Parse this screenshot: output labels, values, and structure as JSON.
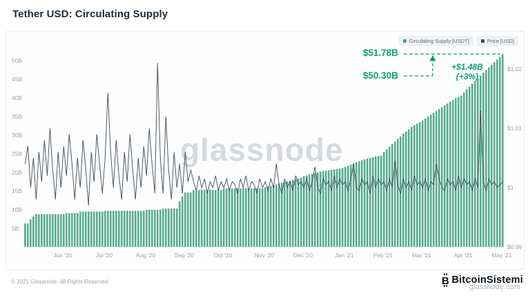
{
  "header": {
    "title": "Tether USD: Circulating Supply"
  },
  "legend": [
    {
      "label": "Circulating Supply [USDT]",
      "color": "#46a283"
    },
    {
      "label": "Price [USD]",
      "color": "#37474f"
    }
  ],
  "watermark": "glassnode",
  "annotations": {
    "current_label": "$51.78B",
    "previous_label": "$50.30B",
    "delta_line1": "+$1.48B",
    "delta_line2": "(+3%)",
    "current_value": 51.78,
    "previous_value": 50.3,
    "color": "#0ba173"
  },
  "footer": {
    "copyright": "© 2021 Glassnode. All Rights Reserved.",
    "brand": "BitcoinSistemi",
    "brand_overlay": "glassnode.com",
    "bitcoin_icon": "B"
  },
  "chart_data": {
    "type": "bar",
    "title": "Tether USD: Circulating Supply",
    "x_unit": "date (May 2020 - May 2021, ~2-day bars)",
    "grid": false,
    "legend_position": "top-right",
    "x_ticks": [
      {
        "i": 14,
        "label": "Jun '20"
      },
      {
        "i": 29,
        "label": "Jul '20"
      },
      {
        "i": 44,
        "label": "Aug '20"
      },
      {
        "i": 58,
        "label": "Sep '20"
      },
      {
        "i": 72,
        "label": "Oct '20"
      },
      {
        "i": 87,
        "label": "Nov '20"
      },
      {
        "i": 101,
        "label": "Dec '20"
      },
      {
        "i": 116,
        "label": "Jan '21"
      },
      {
        "i": 130,
        "label": "Feb '21"
      },
      {
        "i": 144,
        "label": "Mar '21"
      },
      {
        "i": 159,
        "label": "Apr '21"
      },
      {
        "i": 173,
        "label": "May '21"
      }
    ],
    "left_axis": {
      "label": "Circulating Supply [USDT]",
      "range": [
        0,
        52
      ],
      "ticks": [
        {
          "v": 5,
          "label": "5B"
        },
        {
          "v": 10,
          "label": "10B"
        },
        {
          "v": 15,
          "label": "15B"
        },
        {
          "v": 20,
          "label": "20B"
        },
        {
          "v": 25,
          "label": "25B"
        },
        {
          "v": 30,
          "label": "30B"
        },
        {
          "v": 35,
          "label": "35B"
        },
        {
          "v": 40,
          "label": "40B"
        },
        {
          "v": 45,
          "label": "45B"
        },
        {
          "v": 50,
          "label": "50B"
        }
      ]
    },
    "right_axis": {
      "label": "Price [USD]",
      "range": [
        0.99,
        1.02
      ],
      "ticks": [
        {
          "v": 0.99,
          "label": "$0.99"
        },
        {
          "v": 1.0,
          "label": "$1"
        },
        {
          "v": 1.01,
          "label": "$1.01"
        },
        {
          "v": 1.02,
          "label": "$1.02"
        }
      ]
    },
    "series": [
      {
        "name": "Circulating Supply [USDT]",
        "type": "bar",
        "unit": "billions USDT",
        "color": "#46a283",
        "values": [
          6.3,
          6.3,
          7.4,
          8.2,
          8.8,
          8.8,
          8.8,
          8.8,
          8.8,
          8.8,
          8.8,
          8.8,
          8.8,
          8.8,
          8.8,
          9.1,
          9.1,
          9.1,
          9.1,
          9.1,
          9.5,
          9.5,
          9.5,
          9.5,
          9.5,
          9.5,
          9.5,
          9.5,
          9.5,
          9.7,
          9.7,
          9.7,
          9.7,
          9.7,
          9.7,
          9.7,
          9.7,
          9.7,
          9.7,
          9.7,
          9.7,
          9.7,
          9.7,
          9.7,
          10.0,
          10.0,
          10.0,
          10.0,
          10.0,
          10.0,
          10.3,
          10.3,
          10.3,
          10.3,
          10.3,
          10.3,
          12.2,
          13.6,
          14.6,
          14.6,
          14.6,
          15.3,
          15.2,
          15.3,
          15.4,
          15.3,
          15.3,
          15.4,
          15.3,
          15.3,
          15.4,
          15.3,
          15.7,
          15.7,
          15.7,
          15.7,
          15.7,
          15.7,
          15.7,
          15.7,
          15.7,
          15.7,
          15.7,
          15.7,
          15.7,
          15.7,
          15.7,
          16.0,
          16.2,
          16.4,
          16.6,
          16.8,
          17.0,
          17.2,
          17.4,
          17.6,
          17.8,
          18.0,
          18.2,
          18.4,
          18.6,
          19.0,
          19.2,
          19.4,
          19.6,
          19.8,
          20.0,
          20.2,
          20.4,
          20.5,
          20.6,
          20.7,
          20.8,
          20.9,
          21.0,
          21.2,
          21.5,
          21.8,
          22.1,
          22.4,
          22.7,
          23.0,
          23.3,
          23.5,
          23.7,
          23.9,
          24.1,
          24.3,
          24.4,
          24.5,
          25.5,
          26.2,
          26.9,
          27.6,
          28.3,
          29.0,
          29.7,
          30.4,
          31.0,
          31.6,
          32.2,
          32.7,
          33.1,
          33.5,
          34.0,
          34.5,
          35.0,
          35.5,
          36.0,
          36.5,
          37.0,
          37.5,
          38.0,
          38.5,
          39.0,
          39.5,
          40.0,
          40.3,
          40.6,
          41.5,
          42.3,
          43.0,
          43.8,
          44.5,
          45.2,
          46.0,
          46.8,
          47.5,
          48.2,
          48.9,
          49.6,
          50.3,
          51.0,
          51.78
        ]
      },
      {
        "name": "Price [USD]",
        "type": "line",
        "unit": "USD",
        "color": "#3c4b54",
        "values": [
          1.004,
          1.007,
          1.0,
          1.005,
          0.998,
          1.006,
          1.001,
          1.008,
          1.002,
          1.01,
          1.003,
          0.998,
          1.006,
          1.0,
          1.007,
          1.002,
          1.009,
          1.004,
          0.998,
          1.005,
          1.0,
          1.008,
          1.003,
          0.997,
          1.006,
          1.001,
          1.009,
          1.004,
          0.999,
          1.005,
          1.016,
          1.006,
          1.0,
          1.008,
          1.002,
          0.998,
          1.006,
          1.001,
          1.009,
          1.003,
          0.998,
          1.005,
          1.0,
          1.007,
          1.002,
          1.01,
          1.004,
          0.999,
          1.021,
          1.005,
          0.999,
          1.012,
          1.003,
          0.998,
          1.006,
          1.0,
          1.004,
          0.999,
          1.006,
          1.001,
          1.003,
          1.001,
          0.9995,
          1.002,
          1.0,
          1.0015,
          0.999,
          1.001,
          1.0,
          1.002,
          0.9995,
          1.001,
          1.0,
          1.0015,
          0.9995,
          1.001,
          1.0005,
          0.999,
          1.0015,
          1.0,
          1.002,
          0.9995,
          1.001,
          1.0005,
          0.999,
          1.0015,
          1.0,
          1.001,
          0.9995,
          1.0015,
          1.0,
          1.004,
          1.0005,
          0.999,
          1.0015,
          1.0,
          1.001,
          0.9995,
          1.002,
          1.0005,
          1.001,
          1.0,
          1.0015,
          0.9995,
          1.001,
          1.0035,
          1.0,
          0.999,
          1.0015,
          1.0005,
          1.001,
          0.9995,
          1.002,
          1.0,
          1.0015,
          1.0005,
          1.001,
          0.9995,
          1.0015,
          1.004,
          1.0,
          0.9995,
          1.0015,
          1.0005,
          1.001,
          0.999,
          1.002,
          1.0,
          1.0015,
          1.0005,
          1.001,
          0.9995,
          1.0015,
          1.0,
          1.0045,
          1.0005,
          0.999,
          1.0015,
          1.0,
          1.001,
          0.9995,
          1.002,
          1.0005,
          1.001,
          1.0,
          1.0015,
          0.9995,
          1.001,
          1.0005,
          1.004,
          1.0015,
          1.0,
          0.9995,
          1.0015,
          1.0005,
          1.001,
          0.9995,
          1.002,
          1.0,
          1.0015,
          1.0005,
          1.001,
          0.9995,
          1.0015,
          1.0,
          1.013,
          1.001,
          0.9995,
          1.0015,
          1.0005,
          1.001,
          1.0,
          1.0005,
          1.001
        ]
      }
    ]
  }
}
